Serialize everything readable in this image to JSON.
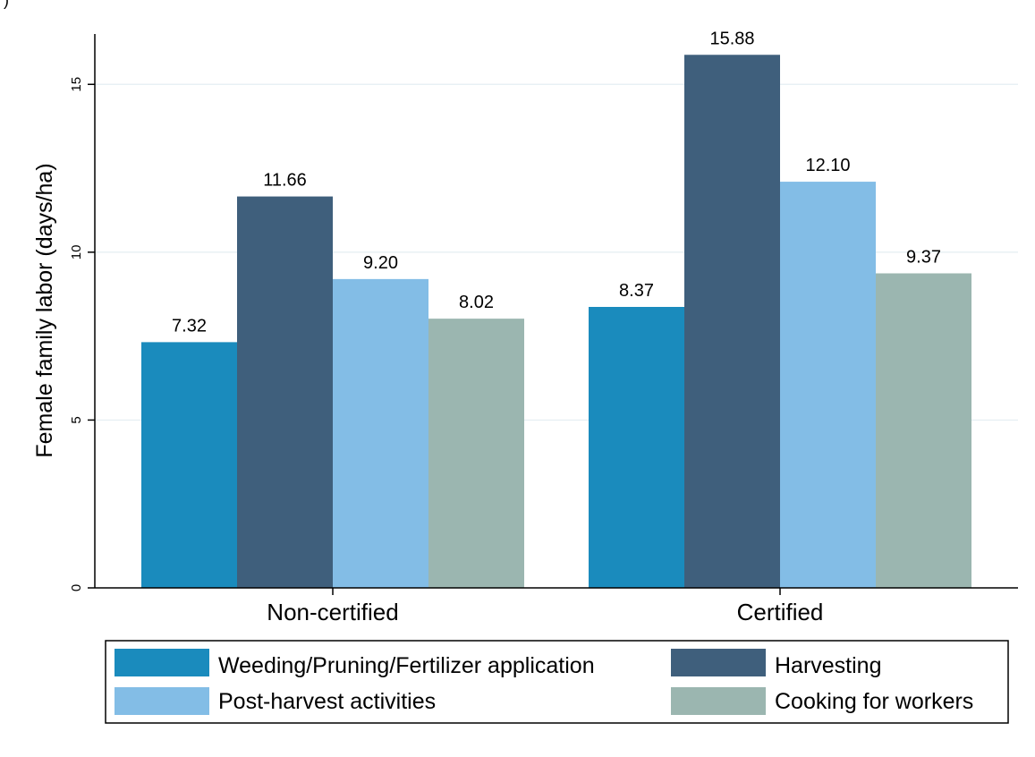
{
  "chart_data": {
    "type": "bar",
    "categories": [
      "Non-certified",
      "Certified"
    ],
    "series": [
      {
        "name": "Weeding/Pruning/Fertilizer application",
        "color": "#1a8bbd",
        "values": [
          7.32,
          8.37
        ],
        "labels": [
          "7.32",
          "8.37"
        ]
      },
      {
        "name": "Harvesting",
        "color": "#3f5f7c",
        "values": [
          11.66,
          15.88
        ],
        "labels": [
          "11.66",
          "15.88"
        ]
      },
      {
        "name": "Post-harvest activities",
        "color": "#83bde6",
        "values": [
          9.2,
          12.1
        ],
        "labels": [
          "9.20",
          "12.10"
        ]
      },
      {
        "name": "Cooking for workers",
        "color": "#9bb6b0",
        "values": [
          8.02,
          9.37
        ],
        "labels": [
          "8.02",
          "9.37"
        ]
      }
    ],
    "ylabel": "Female family labor (days/ha)",
    "xlabel": "",
    "ylim": [
      0,
      16.5
    ],
    "yticks": [
      0,
      5,
      10,
      15
    ],
    "ytick_labels": [
      "0",
      "5",
      "10",
      "15"
    ],
    "grid": true,
    "legend_position": "bottom"
  },
  "corner_mark": ")"
}
